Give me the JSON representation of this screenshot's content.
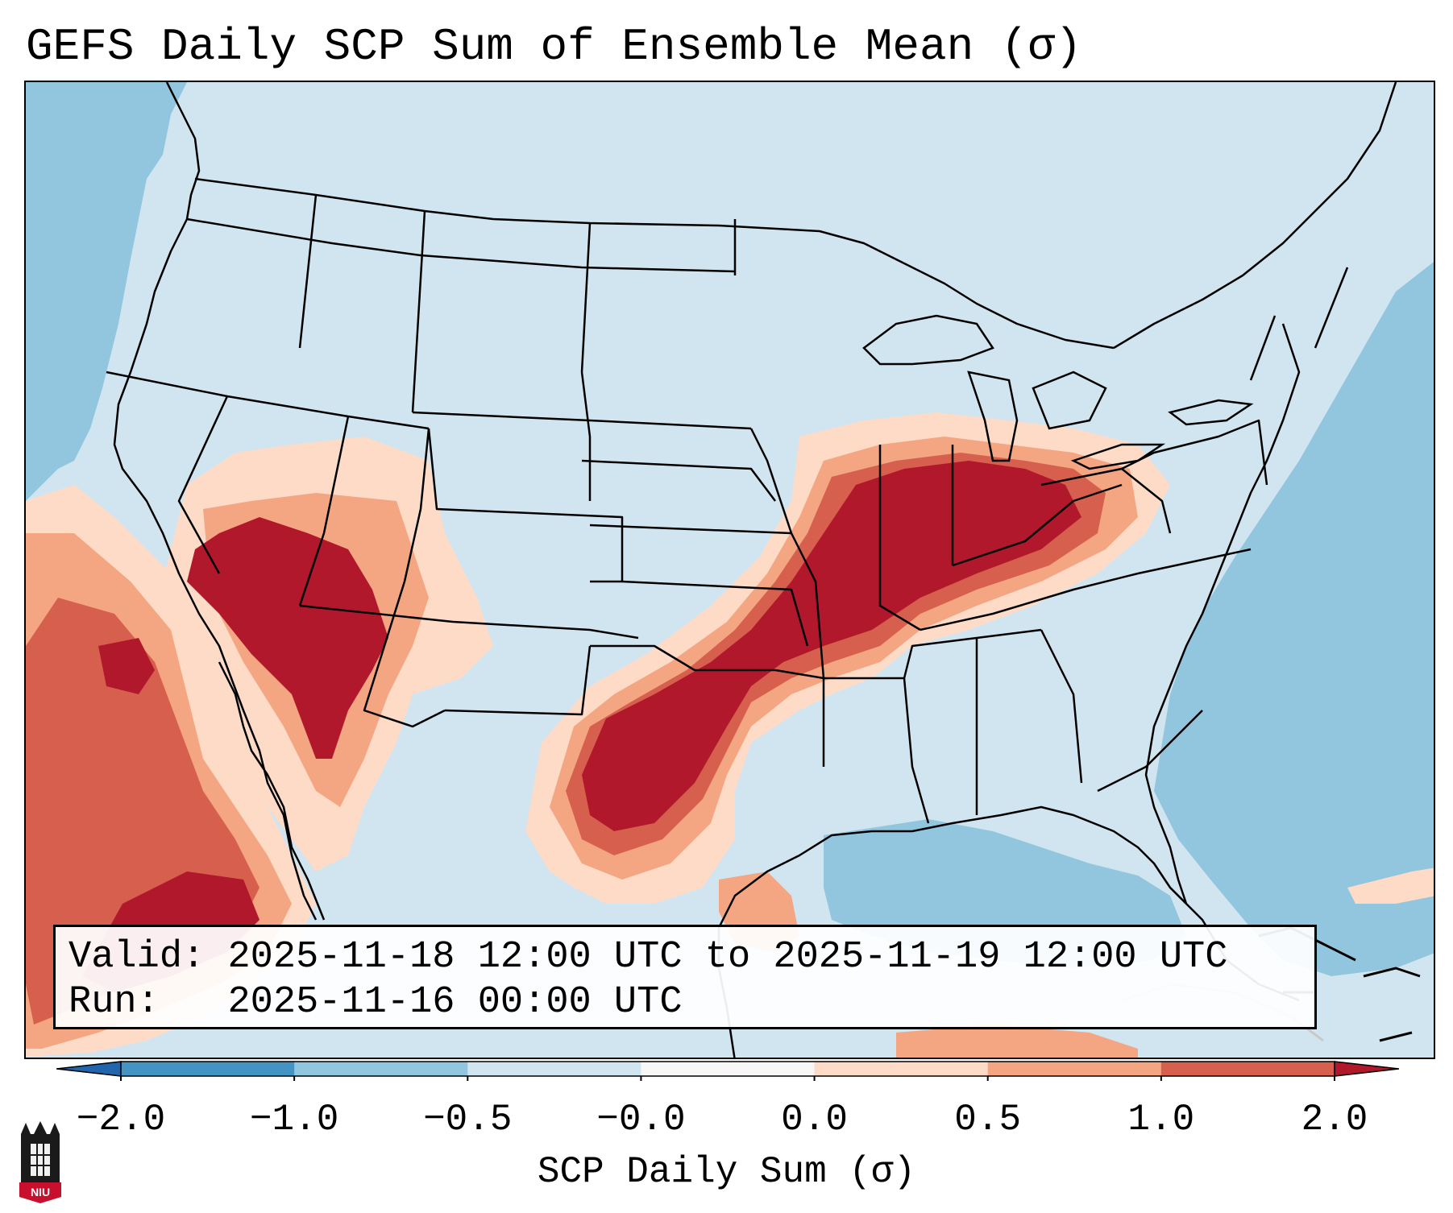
{
  "title": "GEFS Daily SCP Sum of Ensemble Mean (σ)",
  "info": {
    "valid_label": "Valid:",
    "valid_value": "2025-11-18 12:00 UTC to 2025-11-19 12:00 UTC",
    "run_label": "Run:",
    "run_value": "2025-11-16 00:00 UTC"
  },
  "colorbar": {
    "label": "SCP Daily Sum (σ)",
    "ticks": [
      "−2.0",
      "−1.0",
      "−0.5",
      "−0.0",
      "0.0",
      "0.5",
      "1.0",
      "2.0"
    ],
    "bins": [
      {
        "from": -2.0,
        "to": -1.0,
        "color": "#4393c3"
      },
      {
        "from": -1.0,
        "to": -0.5,
        "color": "#92c5de"
      },
      {
        "from": -0.5,
        "to": -0.0,
        "color": "#d1e5f0"
      },
      {
        "from": -0.0,
        "to": 0.0,
        "color": "#f7f7f7"
      },
      {
        "from": 0.0,
        "to": 0.5,
        "color": "#fddbc7"
      },
      {
        "from": 0.5,
        "to": 1.0,
        "color": "#f4a582"
      },
      {
        "from": 1.0,
        "to": 2.0,
        "color": "#d6604d"
      }
    ],
    "under_color": "#2166ac",
    "over_color": "#b2182b"
  },
  "colors": {
    "ocean": "#92c5de",
    "land_background": "#d1e5f0",
    "high": "#b2182b"
  },
  "logo": {
    "text": "NIU"
  }
}
